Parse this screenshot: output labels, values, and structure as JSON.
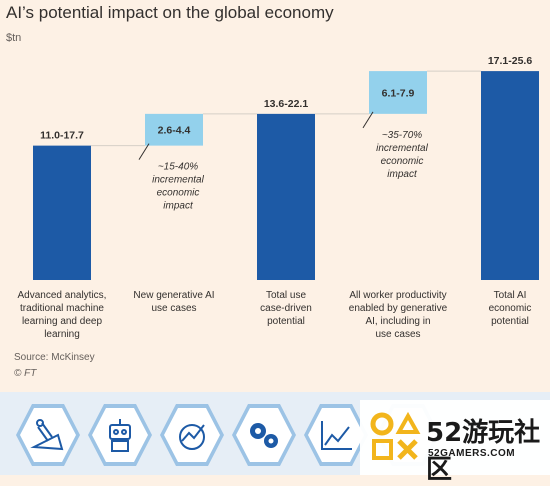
{
  "chart_data": {
    "type": "waterfall",
    "title": "AI’s potential impact on the global economy",
    "unit_label": "$tn",
    "ylim": [
      0,
      26
    ],
    "bars": [
      {
        "label_lines": [
          "Advanced analytics,",
          "traditional machine",
          "learning and deep",
          "learning"
        ],
        "range_label": "11.0-17.7",
        "base": 0,
        "value": 11.0,
        "kind": "total"
      },
      {
        "label_lines": [
          "New generative AI",
          "use cases"
        ],
        "range_label": "2.6-4.4",
        "base": 11.0,
        "value": 13.6,
        "kind": "increment",
        "note_lines": [
          "~15-40%",
          "incremental",
          "economic",
          "impact"
        ]
      },
      {
        "label_lines": [
          "Total use",
          "case-driven",
          "potential"
        ],
        "range_label": "13.6-22.1",
        "base": 0,
        "value": 13.6,
        "kind": "total"
      },
      {
        "label_lines": [
          "All worker productivity",
          "enabled by generative",
          "AI, including in",
          "use cases"
        ],
        "range_label": "6.1-7.9",
        "base": 13.6,
        "value": 17.1,
        "kind": "increment",
        "note_lines": [
          "~35-70%",
          "incremental",
          "economic",
          "impact"
        ]
      },
      {
        "label_lines": [
          "Total AI",
          "economic",
          "potential"
        ],
        "range_label": "17.1-25.6",
        "base": 0,
        "value": 17.1,
        "kind": "total"
      }
    ],
    "colors": {
      "total": "#1d5aa6",
      "increment": "#93d1ec",
      "connector": "#d6cfc7"
    },
    "source": "Source: McKinsey",
    "credit": "© FT"
  },
  "icons": [
    "circuit-board-icon",
    "robot-icon",
    "gear-chart-icon",
    "gears-icon",
    "line-chart-icon",
    "hex-icon"
  ],
  "watermark": {
    "text": "52游玩社区",
    "sub": "52GAMERS.COM"
  }
}
